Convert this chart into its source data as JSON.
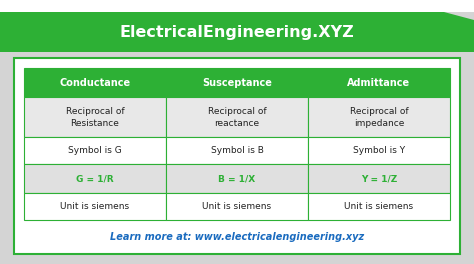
{
  "title": "ElectricalEngineering.XYZ",
  "title_bg_color": "#2db035",
  "title_text_color": "#ffffff",
  "outer_bg_color": "#d4d4d4",
  "header_row": [
    "Conductance",
    "Susceptance",
    "Admittance"
  ],
  "header_bg": "#2db035",
  "header_text_color": "#ffffff",
  "rows": [
    [
      "Reciprocal of\nResistance",
      "Reciprocal of\nreactance",
      "Reciprocal of\nimpedance"
    ],
    [
      "Symbol is G",
      "Symbol is B",
      "Symbol is Y"
    ],
    [
      "G = 1/R",
      "B = 1/X",
      "Y = 1/Z"
    ],
    [
      "Unit is siemens",
      "Unit is siemens",
      "Unit is siemens"
    ]
  ],
  "row_colors": [
    "#e8e8e8",
    "#ffffff",
    "#e0e0e0",
    "#ffffff"
  ],
  "formula_row_index": 2,
  "formula_color": "#2db035",
  "footer_text": "Learn more at: www.electricalengineering.xyz",
  "footer_color": "#1a6bbf",
  "table_border_color": "#2db035",
  "cell_text_color": "#222222",
  "card_border_color": "#2db035"
}
